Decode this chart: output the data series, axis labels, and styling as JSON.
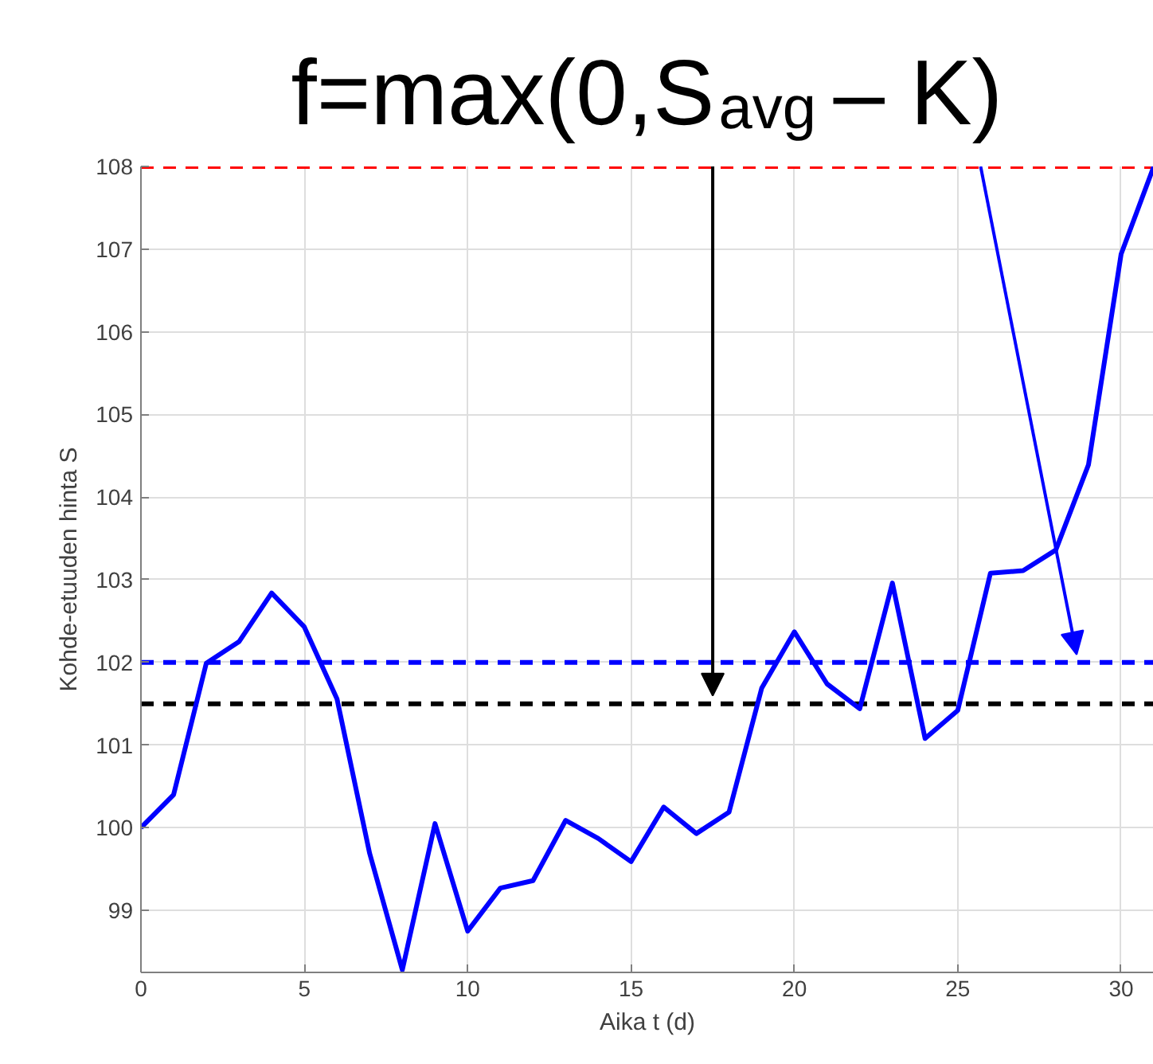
{
  "chart_data": {
    "type": "line",
    "title": "f=max(0,S$_{avg}$ – K)",
    "xlabel": "Aika t (d)",
    "ylabel": "Kohde-etuuden hinta S",
    "x": [
      0,
      1,
      2,
      3,
      4,
      5,
      6,
      7,
      8,
      9,
      10,
      11,
      12,
      13,
      14,
      15,
      16,
      17,
      18,
      19,
      20,
      21,
      22,
      23,
      24,
      25,
      26,
      27,
      28,
      29,
      30,
      31
    ],
    "series": [
      {
        "color": "#0000ff",
        "values": [
          100.0,
          100.4,
          101.99,
          102.25,
          102.84,
          102.43,
          101.56,
          99.69,
          98.28,
          100.05,
          98.75,
          99.27,
          99.36,
          100.09,
          99.87,
          99.59,
          100.25,
          99.93,
          100.19,
          101.69,
          102.37,
          101.74,
          101.44,
          102.96,
          101.08,
          101.42,
          103.08,
          103.11,
          103.36,
          104.39,
          106.94,
          108.0
        ]
      }
    ],
    "xlim": [
      0,
      31
    ],
    "ylim": [
      98.25,
      108
    ],
    "xticks": [
      0,
      5,
      10,
      15,
      20,
      25,
      30
    ],
    "yticks": [
      99,
      100,
      101,
      102,
      103,
      104,
      105,
      106,
      107,
      108
    ],
    "ref_lines": [
      {
        "axis": "y",
        "value": 108,
        "color": "#ff0000",
        "line_style": "dashed"
      },
      {
        "axis": "y",
        "value": 102,
        "color": "#0000ff",
        "line_style": "dashed"
      },
      {
        "axis": "y",
        "value": 101.5,
        "color": "#000000",
        "line_style": "dashed"
      }
    ],
    "grid": true,
    "marker": "none",
    "line_style": "solid"
  }
}
